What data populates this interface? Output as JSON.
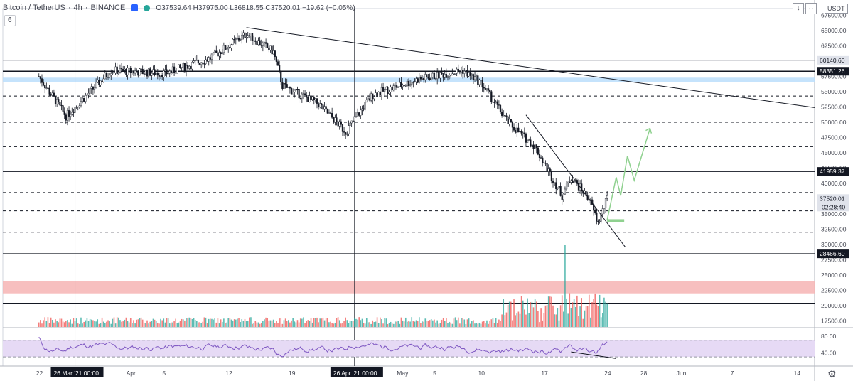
{
  "header": {
    "symbol": "Bitcoin / TetherUS",
    "interval": "4h",
    "exchange": "BINANCE",
    "ohlc": "O37539.64 H37975.00 L36818.55 C37520.01 −19.62 (−0.05%)",
    "indicator_count": "6",
    "currency_button": "USDT",
    "tool_down": "↓",
    "tool_expand": "↔"
  },
  "colors": {
    "up": "#ffffff",
    "down": "#131722",
    "vol_up": "#26a69a",
    "vol_down": "#ef5350",
    "rsi_line": "#7e57c2",
    "rsi_band": "#e6daf5",
    "red_zone": "#f6b4b4",
    "blue_zone": "#bbdefb",
    "projection": "#8fd18f"
  },
  "chart_data": {
    "type": "candlestick",
    "price_axis": {
      "ticks": [
        67500,
        65000,
        62500,
        60000,
        57500,
        55000,
        52500,
        50000,
        47500,
        45000,
        42500,
        40000,
        37500,
        35000,
        32500,
        30000,
        27500,
        25000,
        22500,
        20000,
        17500
      ],
      "range": [
        16500,
        68500
      ]
    },
    "price_labels": [
      {
        "value": 60140.6,
        "text": "60140.60",
        "style": "light"
      },
      {
        "value": 58351.26,
        "text": "58351.26",
        "style": "dark"
      },
      {
        "value": 41959.37,
        "text": "41959.37",
        "style": "dark"
      },
      {
        "value": 37520.01,
        "text": "37520.01",
        "style": "light"
      },
      {
        "value": 28466.6,
        "text": "28466.60",
        "style": "dark"
      }
    ],
    "countdown": "02:28:40",
    "time_axis": {
      "labels": [
        "22",
        "26 Mar '21  00:00",
        "Apr",
        "5",
        "12",
        "19",
        "26 Apr '21  00:00",
        "May",
        "5",
        "10",
        "17",
        "24",
        "28",
        "Jun",
        "7",
        "14"
      ],
      "highlighted": [
        "26 Mar '21  00:00",
        "26 Apr '21  00:00"
      ]
    },
    "horizontal_levels": {
      "solid": [
        60140.6,
        58351.26,
        41959.37,
        28466.6
      ],
      "dashed": [
        54300,
        50000,
        46000,
        38500,
        35500,
        32000
      ]
    },
    "zones": [
      {
        "name": "resistance",
        "from": 56600,
        "to": 57300
      },
      {
        "name": "support",
        "from": 22000,
        "to": 24000
      }
    ],
    "key_prices": [
      {
        "date": "2021-03-22",
        "close": 57500
      },
      {
        "date": "2021-03-25",
        "close": 51000
      },
      {
        "date": "2021-03-30",
        "close": 58500
      },
      {
        "date": "2021-04-05",
        "close": 58000
      },
      {
        "date": "2021-04-10",
        "close": 60500
      },
      {
        "date": "2021-04-14",
        "close": 64500
      },
      {
        "date": "2021-04-17",
        "close": 61500
      },
      {
        "date": "2021-04-18",
        "close": 56000
      },
      {
        "date": "2021-04-22",
        "close": 53000
      },
      {
        "date": "2021-04-25",
        "close": 48500
      },
      {
        "date": "2021-04-28",
        "close": 54500
      },
      {
        "date": "2021-05-03",
        "close": 57000
      },
      {
        "date": "2021-05-08",
        "close": 58500
      },
      {
        "date": "2021-05-10",
        "close": 56500
      },
      {
        "date": "2021-05-13",
        "close": 50000
      },
      {
        "date": "2021-05-16",
        "close": 46000
      },
      {
        "date": "2021-05-19",
        "close": 38000
      },
      {
        "date": "2021-05-20",
        "close": 41000
      },
      {
        "date": "2021-05-22",
        "close": 37500
      },
      {
        "date": "2021-05-23",
        "close": 33500
      },
      {
        "date": "2021-05-24",
        "close": 37520
      }
    ],
    "rsi_axis": {
      "ticks": [
        80,
        40
      ]
    }
  }
}
